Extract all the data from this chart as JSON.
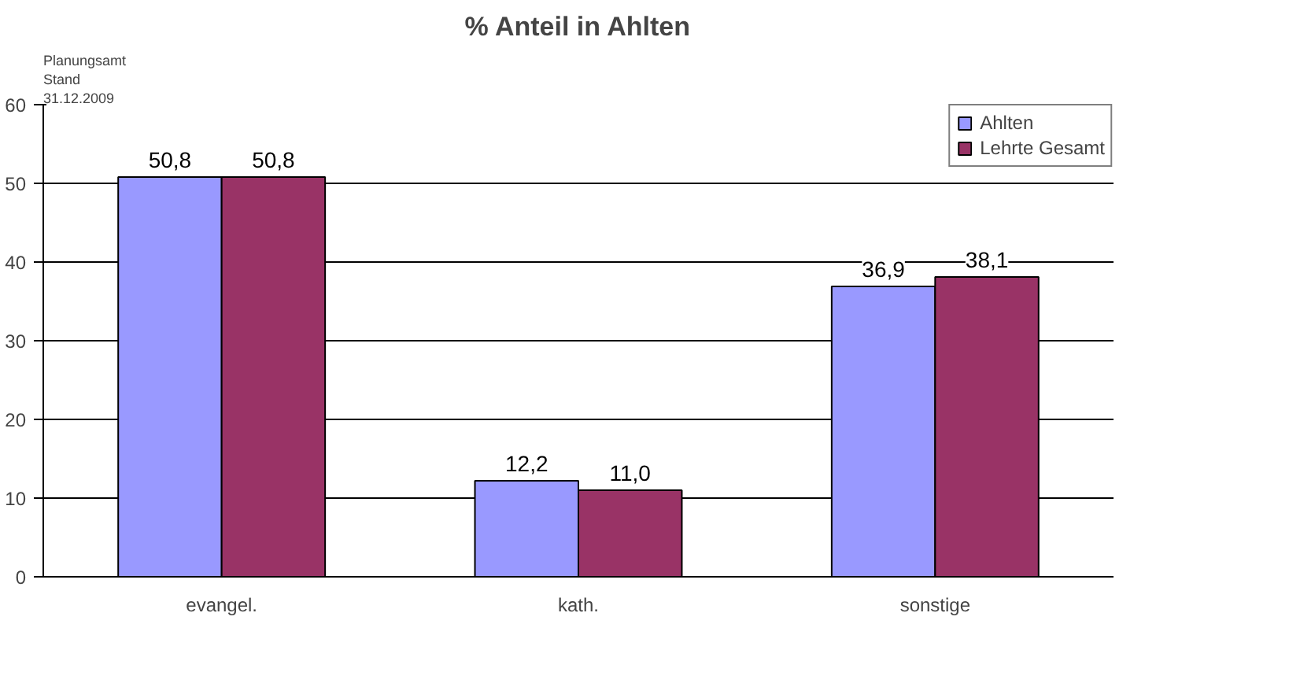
{
  "chart_data": {
    "type": "bar",
    "title": "% Anteil in Ahlten",
    "annotations": [
      "Planungsamt",
      "Stand",
      "31.12.2009"
    ],
    "categories": [
      "evangel.",
      "kath.",
      "sonstige"
    ],
    "series": [
      {
        "name": "Ahlten",
        "color": "#9999ff",
        "values": [
          50.8,
          12.2,
          36.9
        ],
        "value_labels": [
          "50,8",
          "12,2",
          "36,9"
        ]
      },
      {
        "name": "Lehrte Gesamt",
        "color": "#993366",
        "values": [
          50.8,
          11.0,
          38.1
        ],
        "value_labels": [
          "50,8",
          "11,0",
          "38,1"
        ]
      }
    ],
    "ylim": [
      0,
      60
    ],
    "yticks": [
      0,
      10,
      20,
      30,
      40,
      50,
      60
    ],
    "grid": "y",
    "legend": "top right"
  }
}
